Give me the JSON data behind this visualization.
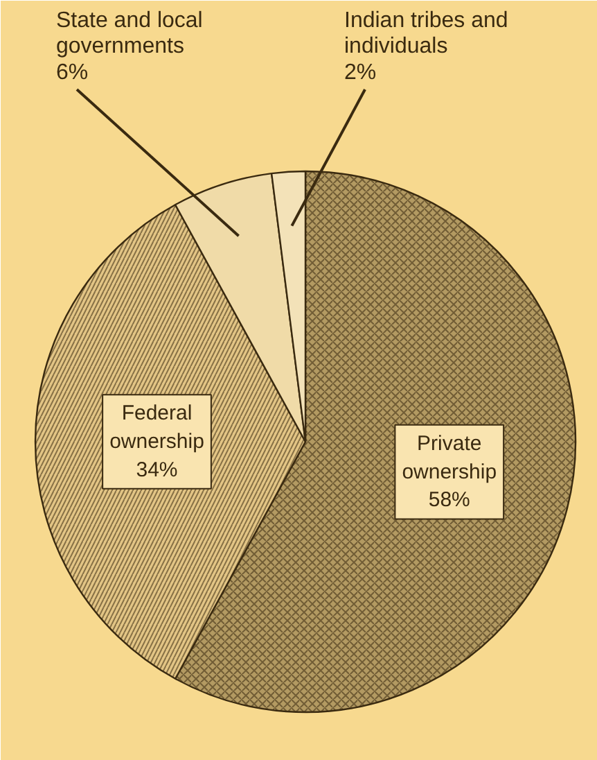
{
  "chart_data": {
    "type": "pie",
    "categories": [
      "Private ownership",
      "Federal ownership",
      "State and local governments",
      "Indian tribes and individuals"
    ],
    "values": [
      58,
      34,
      6,
      2
    ],
    "value_labels": [
      "58%",
      "34%",
      "6%",
      "2%"
    ],
    "colors": [
      "#b39a62",
      "#e3c585",
      "#f0dba8",
      "#f3e2b8"
    ]
  }
}
